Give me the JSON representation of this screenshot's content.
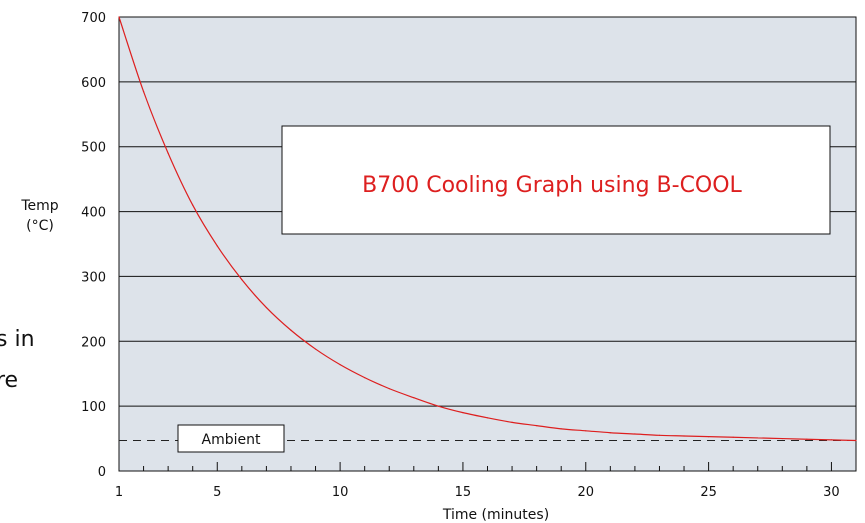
{
  "background_text": [
    "s in",
    "re"
  ],
  "chart_data": {
    "type": "line",
    "title": "B700 Cooling Graph using B-COOL",
    "xlabel": "Time (minutes)",
    "ylabel": [
      "Temp",
      "(°C)"
    ],
    "xlim": [
      1,
      31
    ],
    "ylim": [
      0,
      700
    ],
    "x_ticks": [
      1,
      5,
      10,
      15,
      20,
      25,
      30
    ],
    "y_ticks": [
      0,
      100,
      200,
      300,
      400,
      500,
      600,
      700
    ],
    "grid": true,
    "series": [
      {
        "x": [
          1,
          2,
          3,
          4,
          5,
          6,
          7,
          8,
          9,
          10,
          11,
          12,
          13,
          14,
          15,
          16,
          17,
          18,
          19,
          20,
          21,
          22,
          23,
          24,
          25,
          26,
          27,
          28,
          29,
          30,
          31
        ],
        "values": [
          700,
          585,
          490,
          410,
          347,
          295,
          252,
          217,
          188,
          164,
          144,
          127,
          113,
          100,
          90,
          82,
          75,
          70,
          65,
          62,
          59,
          57,
          55,
          54,
          53,
          52,
          51,
          50,
          49,
          48,
          47
        ]
      },
      {
        "name": "Ambient",
        "x": [
          1,
          31
        ],
        "values": [
          47,
          47
        ]
      }
    ],
    "annotations": [
      "Ambient"
    ],
    "colors": {
      "plot_bg": "#dde3ea",
      "grid": "#111111",
      "curve": "#dd1f1f",
      "title_text": "#dd1f1f"
    }
  }
}
